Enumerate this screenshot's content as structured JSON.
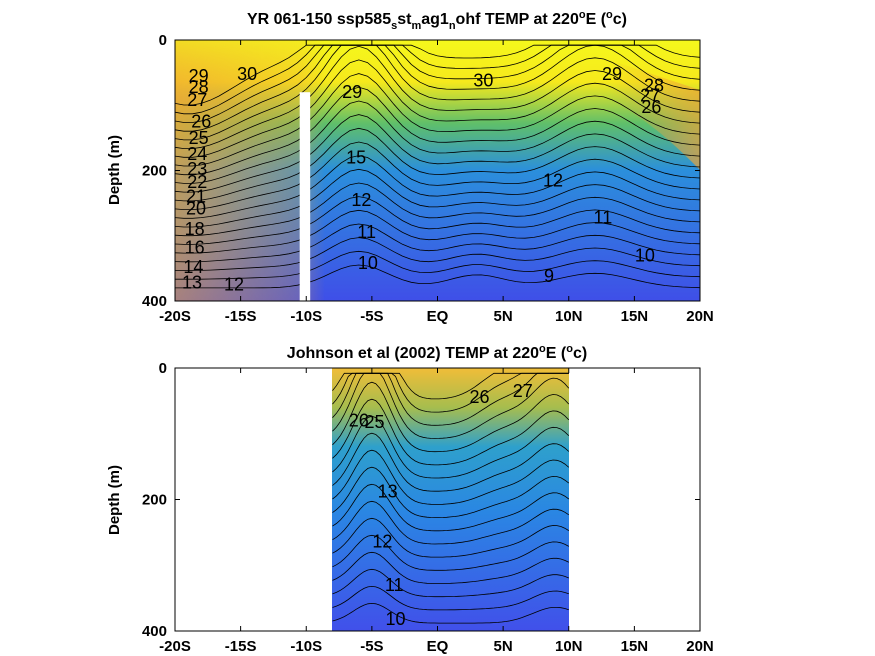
{
  "chart_data": [
    {
      "type": "contour",
      "title_parts": {
        "p1": "YR 061-150 ssp585",
        "s1": "s",
        "p2": "st",
        "s2": "m",
        "p3": "ag1",
        "s3": "n",
        "p4": "ohf TEMP at 220",
        "sup1": "o",
        "p5": "E (",
        "sup2": "o",
        "p6": "c)"
      },
      "ylabel": "Depth (m)",
      "xlim": [
        -20,
        20
      ],
      "ylim": [
        400,
        0
      ],
      "x_ticks": [
        -20,
        -15,
        -10,
        -5,
        0,
        5,
        10,
        15,
        20
      ],
      "x_tick_labels": [
        "-20S",
        "-15S",
        "-10S",
        "-5S",
        "EQ",
        "5N",
        "10N",
        "15N",
        "20N"
      ],
      "y_ticks": [
        0,
        200,
        400
      ],
      "y_tick_labels": [
        "0",
        "200",
        "400"
      ],
      "data_extent_x": [
        -20,
        20
      ],
      "masked_column": {
        "x_min": -10.5,
        "x_max": -9.7,
        "depth_top": 80
      },
      "contour_levels": [
        9,
        10,
        11,
        12,
        13,
        14,
        15,
        16,
        17,
        18,
        19,
        20,
        21,
        22,
        23,
        24,
        25,
        26,
        27,
        28,
        29,
        30
      ],
      "contour_labels": [
        {
          "text": "30",
          "x": -14.5,
          "depth": 52
        },
        {
          "text": "29",
          "x": -18.2,
          "depth": 55
        },
        {
          "text": "28",
          "x": -18.2,
          "depth": 72
        },
        {
          "text": "27",
          "x": -18.3,
          "depth": 92
        },
        {
          "text": "26",
          "x": -18.0,
          "depth": 125
        },
        {
          "text": "25",
          "x": -18.2,
          "depth": 150
        },
        {
          "text": "24",
          "x": -18.3,
          "depth": 175
        },
        {
          "text": "23",
          "x": -18.3,
          "depth": 198
        },
        {
          "text": "22",
          "x": -18.3,
          "depth": 218
        },
        {
          "text": "21",
          "x": -18.4,
          "depth": 240
        },
        {
          "text": "20",
          "x": -18.4,
          "depth": 258
        },
        {
          "text": "18",
          "x": -18.5,
          "depth": 290
        },
        {
          "text": "16",
          "x": -18.5,
          "depth": 318
        },
        {
          "text": "14",
          "x": -18.6,
          "depth": 348
        },
        {
          "text": "13",
          "x": -18.7,
          "depth": 372
        },
        {
          "text": "12",
          "x": -15.5,
          "depth": 375
        },
        {
          "text": "29",
          "x": -6.5,
          "depth": 80
        },
        {
          "text": "15",
          "x": -6.2,
          "depth": 180
        },
        {
          "text": "12",
          "x": -5.8,
          "depth": 245
        },
        {
          "text": "11",
          "x": -5.4,
          "depth": 294
        },
        {
          "text": "10",
          "x": -5.3,
          "depth": 342
        },
        {
          "text": "30",
          "x": 3.5,
          "depth": 62
        },
        {
          "text": "29",
          "x": 13.3,
          "depth": 52
        },
        {
          "text": "28",
          "x": 16.5,
          "depth": 70
        },
        {
          "text": "27",
          "x": 16.2,
          "depth": 85
        },
        {
          "text": "26",
          "x": 16.3,
          "depth": 103
        },
        {
          "text": "12",
          "x": 8.8,
          "depth": 215
        },
        {
          "text": "11",
          "x": 12.6,
          "depth": 272
        },
        {
          "text": "10",
          "x": 15.8,
          "depth": 330
        },
        {
          "text": "9",
          "x": 8.5,
          "depth": 362
        }
      ]
    },
    {
      "type": "contour",
      "title_parts": {
        "p1": "Johnson et al (2002) TEMP at 220",
        "sup1": "o",
        "p2": "E (",
        "sup2": "o",
        "p3": "c)"
      },
      "ylabel": "Depth (m)",
      "xlim": [
        -20,
        20
      ],
      "ylim": [
        400,
        0
      ],
      "x_ticks": [
        -20,
        -15,
        -10,
        -5,
        0,
        5,
        10,
        15,
        20
      ],
      "x_tick_labels": [
        "-20S",
        "-15S",
        "-10S",
        "-5S",
        "EQ",
        "5N",
        "10N",
        "15N",
        "20N"
      ],
      "y_ticks": [
        0,
        200,
        400
      ],
      "y_tick_labels": [
        "0",
        "200",
        "400"
      ],
      "data_extent_x": [
        -8,
        10
      ],
      "contour_levels": [
        10,
        11,
        12,
        13,
        14,
        15,
        16,
        17,
        18,
        19,
        20,
        21,
        22,
        23,
        24,
        25,
        26,
        27
      ],
      "contour_labels": [
        {
          "text": "26",
          "x": -6.0,
          "depth": 80
        },
        {
          "text": "25",
          "x": -4.8,
          "depth": 82
        },
        {
          "text": "13",
          "x": -3.8,
          "depth": 188
        },
        {
          "text": "26",
          "x": 3.2,
          "depth": 44
        },
        {
          "text": "27",
          "x": 6.5,
          "depth": 35
        },
        {
          "text": "12",
          "x": -4.2,
          "depth": 264
        },
        {
          "text": "11",
          "x": -3.3,
          "depth": 330
        },
        {
          "text": "10",
          "x": -3.2,
          "depth": 382
        }
      ]
    }
  ]
}
